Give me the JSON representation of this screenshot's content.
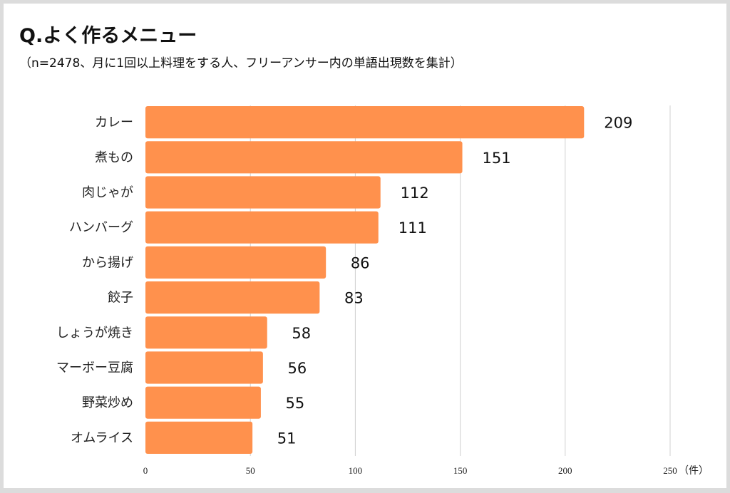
{
  "colors": {
    "bar": "#ff914d",
    "grid": "#d0d0d0",
    "background": "#dcdcdc"
  },
  "chart_data": {
    "type": "bar",
    "orientation": "horizontal",
    "title": "Q.よく作るメニュー",
    "subtitle": "（n=2478、月に1回以上料理をする人、フリーアンサー内の単語出現数を集計）",
    "categories": [
      "カレー",
      "煮もの",
      "肉じゃが",
      "ハンバーグ",
      "から揚げ",
      "餃子",
      "しょうが焼き",
      "マーボー豆腐",
      "野菜炒め",
      "オムライス"
    ],
    "values": [
      209,
      151,
      112,
      111,
      86,
      83,
      58,
      56,
      55,
      51
    ],
    "xlim": [
      0,
      250
    ],
    "xticks": [
      "0",
      "50",
      "100",
      "150",
      "200",
      "250"
    ],
    "xticks_values": [
      0,
      50,
      100,
      150,
      200,
      250
    ],
    "xlabel": "（件）",
    "grid": true
  }
}
